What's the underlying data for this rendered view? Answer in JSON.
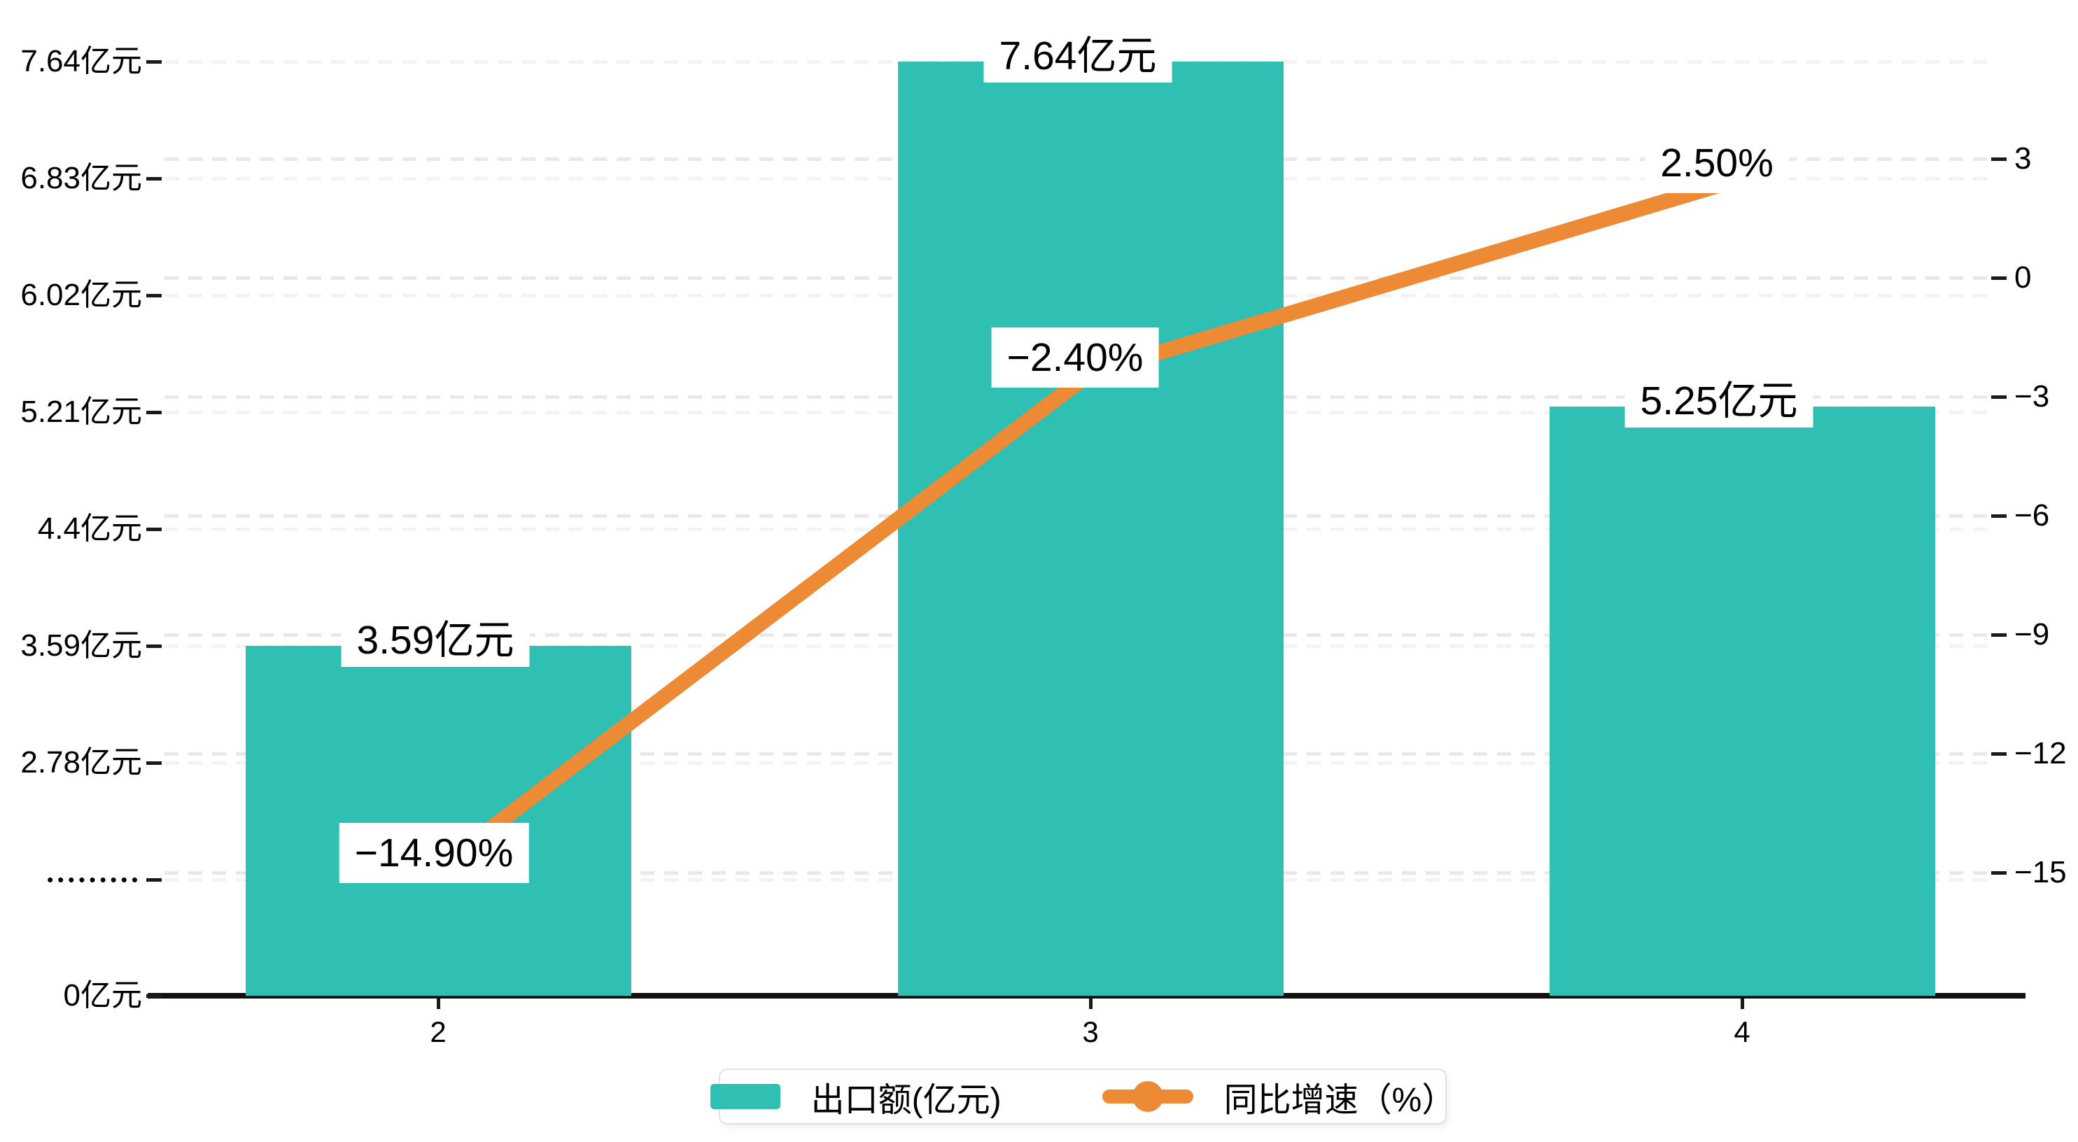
{
  "chart": {
    "colors": {
      "bar": "#2fbfb3",
      "line": "#ed8a35",
      "grid_left_family": "#f3f3f3",
      "grid_right_family": "#e9e9e9",
      "axis": "#111111",
      "label_background": "#ffffff",
      "text": "#000000",
      "legend_border": "#e2e2e2"
    },
    "legend": {
      "position": "bottom",
      "items": [
        {
          "label": "出口额(亿元)",
          "series": "bar"
        },
        {
          "label": "同比增速（%）",
          "series": "line"
        }
      ]
    }
  },
  "chart_data": {
    "type": "bar+line",
    "categories": [
      "2",
      "3",
      "4"
    ],
    "series": [
      {
        "name": "出口额(亿元)",
        "type": "bar",
        "axis": "left",
        "unit": "亿元",
        "values": [
          3.59,
          7.64,
          5.25
        ],
        "data_labels": [
          "3.59亿元",
          "7.64亿元",
          "5.25亿元"
        ]
      },
      {
        "name": "同比增速（%）",
        "type": "line",
        "axis": "right",
        "unit": "%",
        "values": [
          -14.9,
          -2.4,
          2.5
        ],
        "data_labels": [
          "−14.90%",
          "−2.40%",
          "2.50%"
        ]
      }
    ],
    "left_axis": {
      "unit": "亿元",
      "tick_labels": [
        "7.64亿元",
        "6.83亿元",
        "6.02亿元",
        "5.21亿元",
        "4.4亿元",
        "3.59亿元",
        "2.78亿元",
        "•••••••••",
        "0亿元"
      ]
    },
    "right_axis": {
      "tick_labels": [
        "3",
        "0",
        "−3",
        "−6",
        "−9",
        "−12",
        "−15"
      ],
      "max": 3,
      "min": -15
    },
    "x_axis": {
      "tick_labels": [
        "2",
        "3",
        "4"
      ]
    },
    "grid": true,
    "legend_position": "bottom"
  }
}
